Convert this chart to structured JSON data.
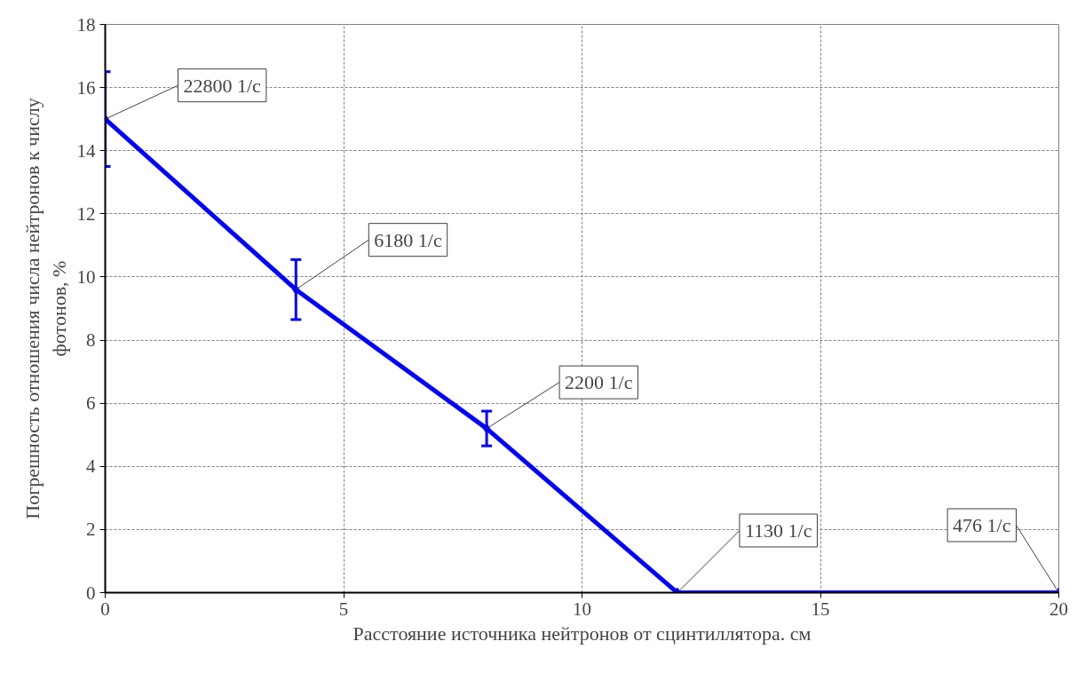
{
  "chart_data": {
    "type": "line",
    "xlabel": "Расстояние источника нейтронов от сцинтиллятора. см",
    "ylabel": "Погрешность отношения числа нейтронов к числу\nфотонов, %",
    "x": [
      0,
      4,
      8,
      12,
      20
    ],
    "series": [
      {
        "color": "#0000ff",
        "values": [
          15,
          9.6,
          5.2,
          0,
          0
        ],
        "errors": [
          1.5,
          0.95,
          0.55,
          null,
          null
        ]
      }
    ],
    "annotations": [
      {
        "text": "22800 1/с",
        "x": 0,
        "y": 15
      },
      {
        "text": "6180 1/с",
        "x": 4,
        "y": 9.6
      },
      {
        "text": "2200 1/с",
        "x": 8,
        "y": 5.2
      },
      {
        "text": "1130 1/с",
        "x": 12,
        "y": 0
      },
      {
        "text": "476 1/с",
        "x": 20,
        "y": 0
      }
    ],
    "xlim": [
      0,
      20
    ],
    "ylim": [
      0,
      18
    ],
    "xticks": [
      0,
      5,
      10,
      15,
      20
    ],
    "yticks": [
      0,
      2,
      4,
      6,
      8,
      10,
      12,
      14,
      16,
      18
    ],
    "grid": true,
    "marker": "diamond",
    "line_style": "solid"
  }
}
